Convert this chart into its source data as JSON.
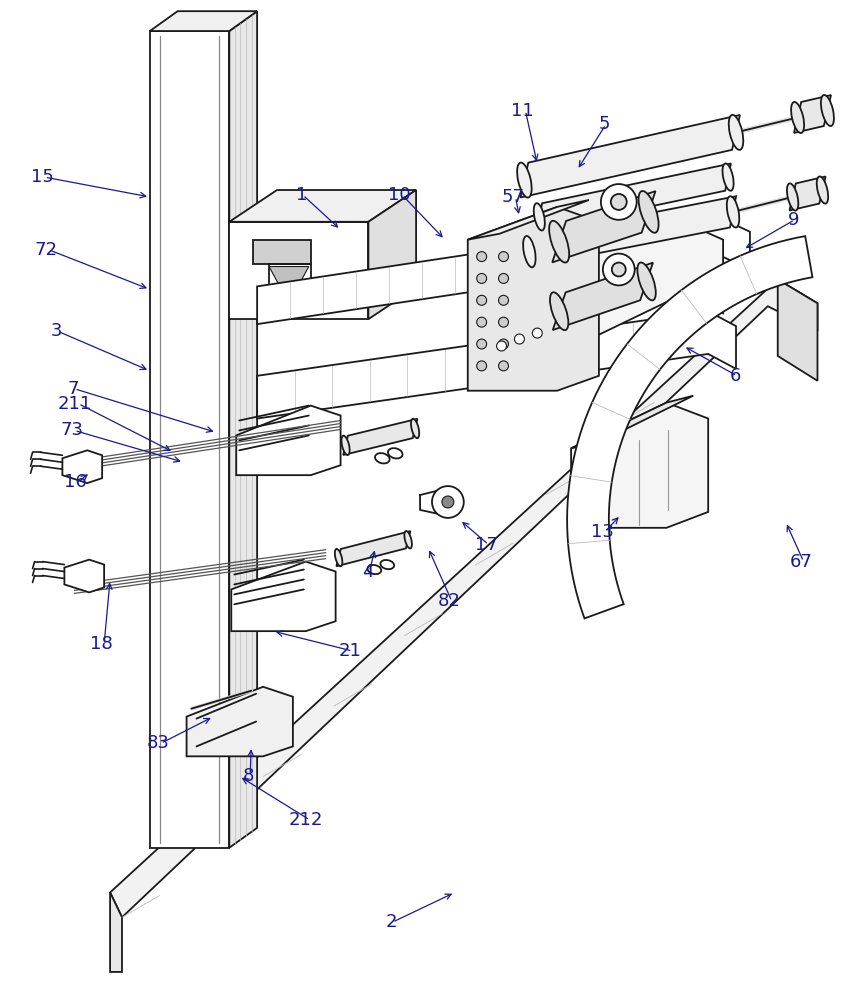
{
  "background_color": "#ffffff",
  "line_color": "#1a1a1a",
  "label_color": "#1a1a8c",
  "lw_main": 1.3,
  "lw_thin": 0.8,
  "lw_thick": 1.8,
  "label_fs": 13,
  "figsize": [
    8.6,
    10.0
  ],
  "dpi": 100,
  "labels_data": [
    [
      "1",
      295,
      193,
      340,
      228,
      true
    ],
    [
      "2",
      385,
      925,
      455,
      895,
      true
    ],
    [
      "3",
      48,
      330,
      148,
      370,
      true
    ],
    [
      "4",
      362,
      572,
      375,
      548,
      true
    ],
    [
      "5",
      600,
      122,
      578,
      168,
      true
    ],
    [
      "6",
      732,
      375,
      685,
      345,
      true
    ],
    [
      "7",
      65,
      388,
      215,
      432,
      true
    ],
    [
      "8",
      242,
      778,
      250,
      748,
      true
    ],
    [
      "9",
      790,
      218,
      745,
      248,
      true
    ],
    [
      "10",
      388,
      193,
      445,
      238,
      true
    ],
    [
      "11",
      512,
      108,
      538,
      162,
      true
    ],
    [
      "13",
      592,
      532,
      622,
      515,
      true
    ],
    [
      "15",
      28,
      175,
      148,
      195,
      true
    ],
    [
      "16",
      62,
      482,
      88,
      472,
      true
    ],
    [
      "17",
      475,
      545,
      460,
      520,
      true
    ],
    [
      "18",
      88,
      645,
      108,
      580,
      true
    ],
    [
      "21",
      338,
      652,
      272,
      632,
      true
    ],
    [
      "57",
      502,
      195,
      520,
      215,
      true
    ],
    [
      "67",
      792,
      562,
      788,
      522,
      true
    ],
    [
      "72",
      32,
      248,
      148,
      288,
      true
    ],
    [
      "73",
      58,
      430,
      182,
      462,
      true
    ],
    [
      "82",
      438,
      602,
      428,
      548,
      true
    ],
    [
      "83",
      145,
      745,
      212,
      718,
      true
    ],
    [
      "211",
      55,
      403,
      172,
      452,
      true
    ],
    [
      "212",
      288,
      822,
      238,
      778,
      true
    ]
  ]
}
